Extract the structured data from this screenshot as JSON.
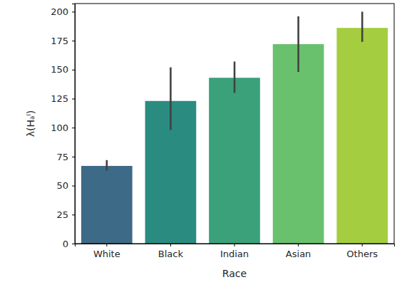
{
  "chart_data": {
    "type": "bar",
    "x_label": "Race",
    "y_label": "λ(Hₐˡ)",
    "categories": [
      "White",
      "Black",
      "Indian",
      "Asian",
      "Others"
    ],
    "values": [
      67,
      123,
      143,
      172,
      186
    ],
    "ci_low": [
      63,
      98,
      130,
      148,
      174
    ],
    "ci_high": [
      72,
      152,
      157,
      196,
      200
    ],
    "colors": [
      "#3d6a86",
      "#2a8b80",
      "#3aa17b",
      "#69c06d",
      "#a4cd3f"
    ],
    "ylim": [
      0,
      207
    ],
    "yticks": [
      0,
      25,
      50,
      75,
      100,
      125,
      150,
      175,
      200
    ],
    "grid": false
  }
}
